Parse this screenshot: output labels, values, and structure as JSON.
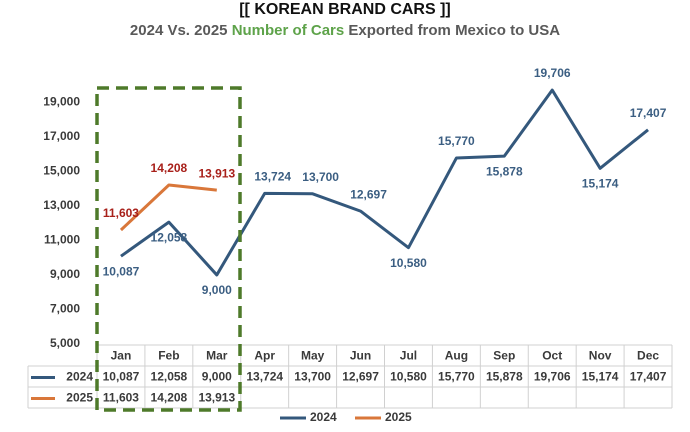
{
  "chart_data": {
    "type": "line",
    "title": "[[ KOREAN BRAND CARS ]]",
    "subtitle_parts": [
      "2024 Vs. 2025 ",
      "Number of Cars",
      " Exported from Mexico to USA"
    ],
    "categories": [
      "Jan",
      "Feb",
      "Mar",
      "Apr",
      "May",
      "Jun",
      "Jul",
      "Aug",
      "Sep",
      "Oct",
      "Nov",
      "Dec"
    ],
    "series": [
      {
        "name": "2024",
        "color": "#34587c",
        "label_color": "#3b5e82",
        "values": [
          10087,
          12058,
          9000,
          13724,
          13700,
          12697,
          10580,
          15770,
          15878,
          19706,
          15174,
          17407
        ],
        "value_labels": [
          "10,087",
          "12,058",
          "9,000",
          "13,724",
          "13,700",
          "12,697",
          "10,580",
          "15,770",
          "15,878",
          "19,706",
          "15,174",
          "17,407"
        ]
      },
      {
        "name": "2025",
        "color": "#d9773a",
        "label_color": "#a8201a",
        "values": [
          11603,
          14208,
          13913,
          null,
          null,
          null,
          null,
          null,
          null,
          null,
          null,
          null
        ],
        "value_labels": [
          "11,603",
          "14,208",
          "13,913",
          null,
          null,
          null,
          null,
          null,
          null,
          null,
          null,
          null
        ]
      }
    ],
    "ylim": [
      5000,
      20000
    ],
    "yticks": [
      {
        "value": 5000,
        "label": "5,000"
      },
      {
        "value": 7000,
        "label": "7,000"
      },
      {
        "value": 9000,
        "label": "9,000"
      },
      {
        "value": 11000,
        "label": "11,000"
      },
      {
        "value": 13000,
        "label": "13,000"
      },
      {
        "value": 15000,
        "label": "15,000"
      },
      {
        "value": 17000,
        "label": "17,000"
      },
      {
        "value": 19000,
        "label": "19,000"
      }
    ],
    "grid": false,
    "legend": "bottom",
    "data_table": true
  }
}
